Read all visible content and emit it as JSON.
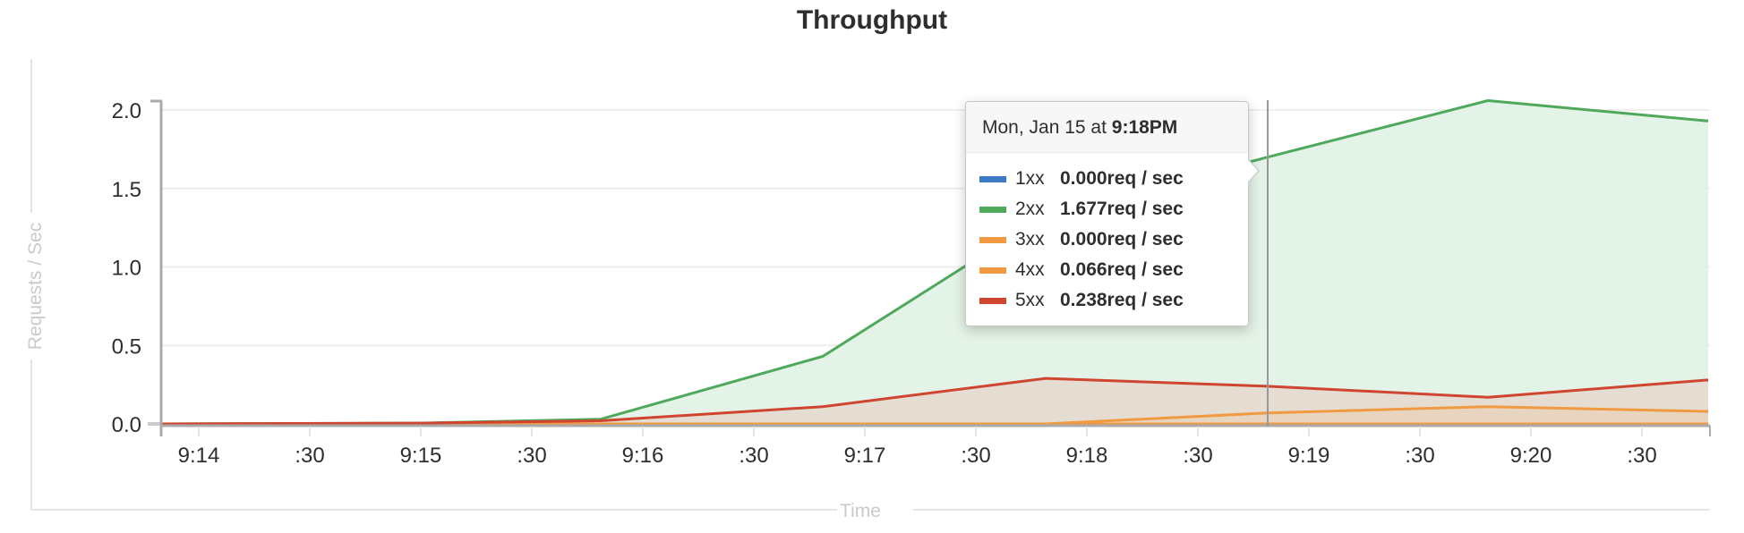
{
  "title": "Throughput",
  "chart_data": {
    "type": "area",
    "title": "Throughput",
    "xlabel": "Time",
    "ylabel": "Requests / Sec",
    "ylim": [
      0,
      2.0
    ],
    "yticks": [
      "0.0",
      "0.5",
      "1.0",
      "1.5",
      "2.0"
    ],
    "xticks": [
      "9:14",
      ":30",
      "9:15",
      ":30",
      "9:16",
      ":30",
      "9:17",
      ":30",
      "9:18",
      ":30",
      "9:19",
      ":30",
      "9:20",
      ":30"
    ],
    "grid": true,
    "x": [
      "9:13:50",
      "9:15:00",
      "9:15:48",
      "9:16:48",
      "9:17:48",
      "9:18:48",
      "9:19:48",
      "9:20:48"
    ],
    "series": [
      {
        "name": "1xx",
        "color": "#3d7ac5",
        "values": [
          0,
          0,
          0,
          0,
          0,
          0,
          0,
          0
        ]
      },
      {
        "name": "2xx",
        "color": "#4fa95b",
        "values": [
          0,
          0.005,
          0.03,
          0.43,
          1.33,
          1.7,
          2.06,
          1.93
        ]
      },
      {
        "name": "3xx",
        "color": "#f09a41",
        "values": [
          0,
          0,
          0,
          0,
          0,
          0,
          0,
          0
        ]
      },
      {
        "name": "4xx",
        "color": "#f09a41",
        "values": [
          0,
          0,
          0,
          0,
          0,
          0.07,
          0.11,
          0.08
        ]
      },
      {
        "name": "5xx",
        "color": "#cf4530",
        "values": [
          0,
          0.005,
          0.02,
          0.11,
          0.29,
          0.24,
          0.17,
          0.28
        ]
      }
    ],
    "tooltip": {
      "date_prefix": "Mon, Jan 15 at ",
      "time": "9:18PM",
      "rows": [
        {
          "label": "1xx",
          "value": "0.000req / sec",
          "color": "#3d7ac5"
        },
        {
          "label": "2xx",
          "value": "1.677req / sec",
          "color": "#4fa95b"
        },
        {
          "label": "3xx",
          "value": "0.000req / sec",
          "color": "#f09a41"
        },
        {
          "label": "4xx",
          "value": "0.066req / sec",
          "color": "#f09a41"
        },
        {
          "label": "5xx",
          "value": "0.238req / sec",
          "color": "#cf4530"
        }
      ]
    }
  }
}
